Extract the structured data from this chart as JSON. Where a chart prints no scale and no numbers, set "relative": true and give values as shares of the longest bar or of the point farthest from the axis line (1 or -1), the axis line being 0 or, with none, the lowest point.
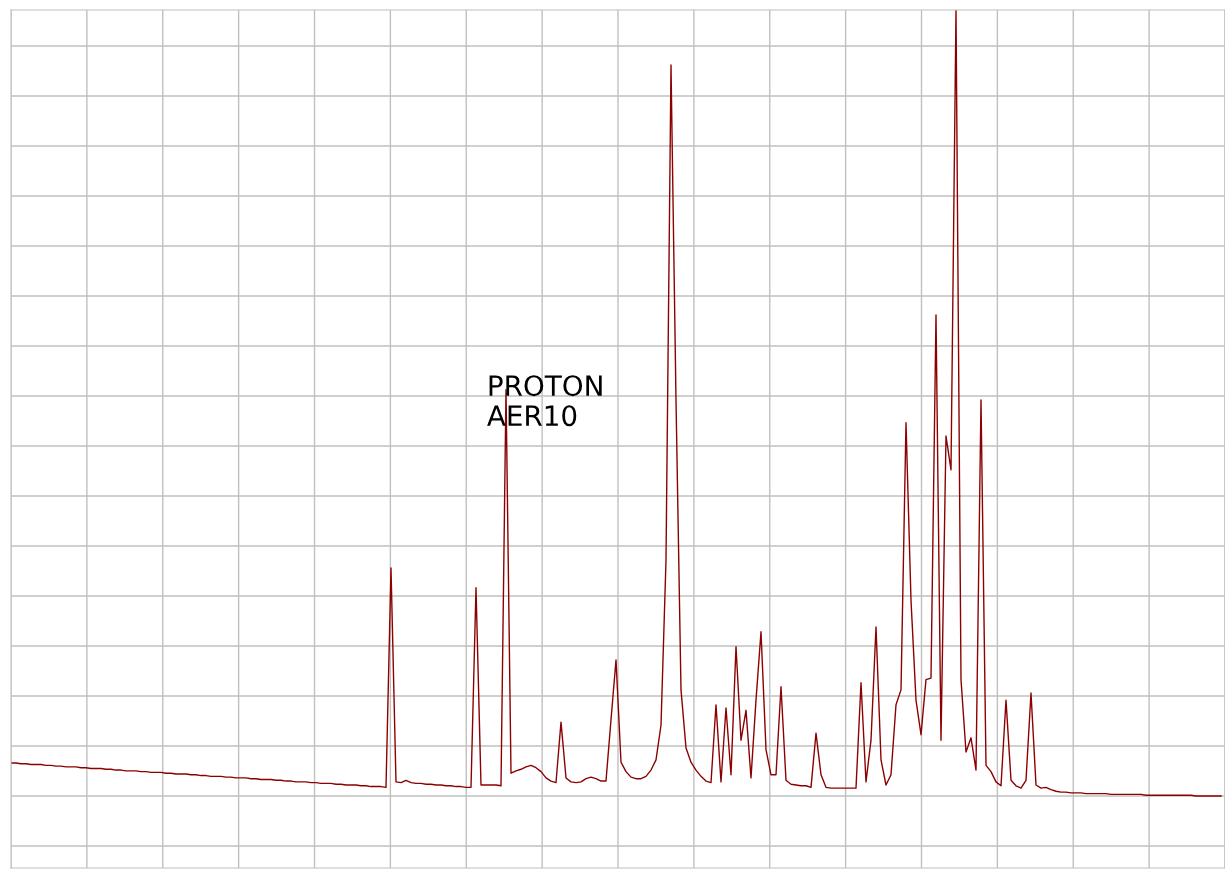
{
  "chart_data": {
    "type": "line",
    "relative": true,
    "grid": true,
    "annotations": [
      "PROTON\nAER10"
    ],
    "categories": [
      null,
      null,
      null,
      null,
      null,
      null,
      null,
      null,
      null,
      null,
      null,
      null,
      null,
      null,
      null,
      null,
      null,
      null,
      null,
      null,
      null,
      null,
      null,
      null,
      null,
      null,
      null,
      null,
      null,
      null,
      null,
      null,
      null,
      null,
      null,
      null,
      null,
      null,
      null,
      null,
      null,
      null,
      null,
      null,
      null,
      null,
      null,
      null,
      null,
      null,
      null,
      null,
      null,
      null,
      null,
      null,
      null,
      null,
      null,
      null,
      null,
      null,
      null,
      null,
      null,
      null,
      null,
      null,
      null,
      null,
      null,
      null,
      null,
      null,
      null,
      null,
      null,
      null,
      null,
      null,
      null,
      null,
      null,
      null,
      null,
      null,
      null,
      null,
      null,
      null,
      null,
      null,
      null,
      null,
      null,
      null,
      null,
      null,
      null,
      null,
      null,
      null,
      null,
      null,
      null,
      null,
      null,
      null,
      null,
      null,
      null,
      null,
      null,
      null,
      null,
      null,
      null,
      null,
      null,
      null,
      null,
      null,
      null,
      null,
      null,
      null,
      null,
      null,
      null,
      null,
      null,
      null,
      null,
      null,
      null,
      null,
      null,
      null,
      null,
      null,
      null,
      null,
      null,
      null,
      null,
      null,
      null,
      null,
      null,
      null,
      null,
      null,
      null,
      null,
      null,
      null,
      null,
      null,
      null,
      null,
      null,
      null,
      null,
      null,
      null,
      null,
      null,
      null,
      null,
      null,
      null,
      null,
      null,
      null,
      null,
      null,
      null,
      null,
      null,
      null,
      null,
      null,
      null,
      null,
      null,
      null,
      null,
      null,
      null,
      null,
      null,
      null,
      null,
      null,
      null,
      null,
      null,
      null,
      null,
      null,
      null,
      null,
      null,
      null,
      null,
      null,
      null,
      null,
      null,
      null,
      null,
      null,
      null,
      null,
      null,
      null,
      null,
      null,
      null,
      null,
      null,
      null,
      null,
      null,
      null,
      null,
      null,
      null,
      null,
      null,
      null,
      null,
      null,
      null,
      null,
      null,
      null,
      null,
      null,
      null,
      null,
      null,
      null
    ],
    "series": [
      {
        "color": "#8b0000",
        "values": [
          0.042,
          0.042,
          0.041,
          0.041,
          0.04,
          0.04,
          0.04,
          0.039,
          0.039,
          0.038,
          0.038,
          0.037,
          0.037,
          0.037,
          0.036,
          0.036,
          0.035,
          0.035,
          0.035,
          0.034,
          0.034,
          0.033,
          0.033,
          0.032,
          0.032,
          0.032,
          0.031,
          0.031,
          0.03,
          0.03,
          0.03,
          0.029,
          0.029,
          0.028,
          0.028,
          0.028,
          0.027,
          0.027,
          0.026,
          0.026,
          0.025,
          0.025,
          0.025,
          0.024,
          0.024,
          0.023,
          0.023,
          0.023,
          0.022,
          0.022,
          0.021,
          0.021,
          0.021,
          0.02,
          0.02,
          0.019,
          0.019,
          0.018,
          0.018,
          0.018,
          0.017,
          0.017,
          0.016,
          0.016,
          0.016,
          0.015,
          0.015,
          0.014,
          0.014,
          0.014,
          0.013,
          0.013,
          0.012,
          0.012,
          0.012,
          0.011,
          0.29,
          0.018,
          0.017,
          0.02,
          0.017,
          0.016,
          0.016,
          0.015,
          0.015,
          0.014,
          0.014,
          0.013,
          0.013,
          0.012,
          0.012,
          0.011,
          0.011,
          0.265,
          0.014,
          0.014,
          0.014,
          0.014,
          0.013,
          0.517,
          0.029,
          0.032,
          0.034,
          0.037,
          0.039,
          0.036,
          0.031,
          0.023,
          0.019,
          0.017,
          0.094,
          0.023,
          0.018,
          0.017,
          0.018,
          0.022,
          0.024,
          0.022,
          0.019,
          0.019,
          0.097,
          0.173,
          0.043,
          0.031,
          0.024,
          0.022,
          0.022,
          0.025,
          0.033,
          0.046,
          0.09,
          0.3,
          0.93,
          0.504,
          0.135,
          0.061,
          0.043,
          0.033,
          0.025,
          0.019,
          0.017,
          0.116,
          0.018,
          0.112,
          0.027,
          0.19,
          0.071,
          0.109,
          0.023,
          0.122,
          0.209,
          0.059,
          0.027,
          0.027,
          0.139,
          0.02,
          0.015,
          0.014,
          0.013,
          0.013,
          0.011,
          0.08,
          0.027,
          0.011,
          0.01,
          0.01,
          0.01,
          0.01,
          0.01,
          0.01,
          0.144,
          0.018,
          0.071,
          0.215,
          0.046,
          0.014,
          0.027,
          0.116,
          0.135,
          0.475,
          0.249,
          0.122,
          0.078,
          0.148,
          0.15,
          0.612,
          0.071,
          0.458,
          0.415,
          1,
          0.148,
          0.056,
          0.074,
          0.033,
          0.504,
          0.039,
          0.031,
          0.018,
          0.013,
          0.122,
          0.02,
          0.013,
          0.01,
          0.02,
          0.131,
          0.014,
          0.01,
          0.011,
          0.008,
          0.006,
          0.005,
          0.005,
          0.004,
          0.004,
          0.004,
          0.003,
          0.003,
          0.003,
          0.003,
          0.003,
          0.002,
          0.002,
          0.002,
          0.002,
          0.002,
          0.002,
          0.002,
          0.001,
          0.001,
          0.001,
          0.001,
          0.001,
          0.001,
          0.001,
          0.001,
          0.001,
          0.001,
          0,
          0,
          0,
          0,
          0,
          0
        ]
      }
    ]
  }
}
